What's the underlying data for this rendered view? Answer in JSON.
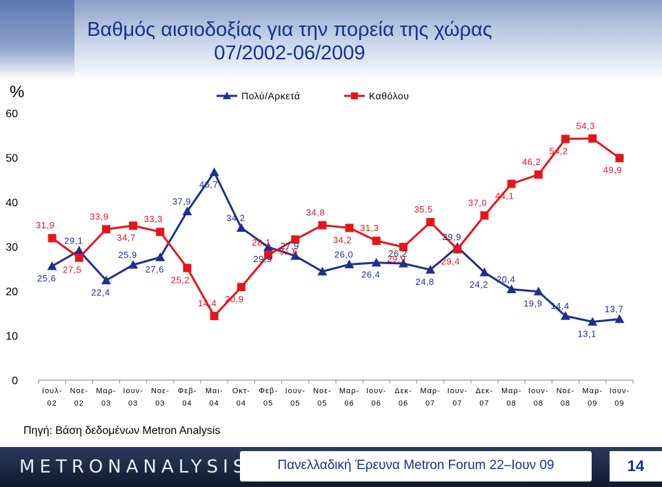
{
  "page": {
    "title_line1": "Βαθμός αισιοδοξίας για την πορεία της χώρας",
    "title_line2": "07/2002-06/2009",
    "source": "Πηγή: Βάση δεδομένων Metron Analysis",
    "footer_logo": "METRONANALYSIS",
    "footer_text": "Πανελλαδική Έρευνα Metron Forum 22–Ιουν 09",
    "page_number": "14"
  },
  "colors": {
    "series1": "#1f2f8f",
    "series2": "#e8141c",
    "title": "#17318f",
    "axis": "#808080"
  },
  "chart_data": {
    "type": "line",
    "ylabel": "%",
    "ylim": [
      0,
      60
    ],
    "yticks": [
      0,
      10,
      20,
      30,
      40,
      50,
      60
    ],
    "legend_position": "top",
    "categories": [
      [
        "Ιουλ-",
        "02"
      ],
      [
        "Νοε-",
        "02"
      ],
      [
        "Μαρ-",
        "03"
      ],
      [
        "Ιουν-",
        "03"
      ],
      [
        "Νοε-",
        "03"
      ],
      [
        "Φεβ-",
        "04"
      ],
      [
        "Μαι-",
        "04"
      ],
      [
        "Οκτ-",
        "04"
      ],
      [
        "Φεβ-",
        "05"
      ],
      [
        "Ιουν-",
        "05"
      ],
      [
        "Νοε-",
        "05"
      ],
      [
        "Μαρ-",
        "06"
      ],
      [
        "Ιουν-",
        "06"
      ],
      [
        "Δεκ-",
        "06"
      ],
      [
        "Μαρ-",
        "07"
      ],
      [
        "Ιουν-",
        "07"
      ],
      [
        "Δεκ-",
        "07"
      ],
      [
        "Μαρ-",
        "08"
      ],
      [
        "Ιουν-",
        "08"
      ],
      [
        "Νοε-",
        "08"
      ],
      [
        "Μαρ-",
        "09"
      ],
      [
        "Ιουν-",
        "09"
      ]
    ],
    "series": [
      {
        "name": "Πολύ/Αρκετά",
        "marker": "triangle",
        "values": [
          25.6,
          29.1,
          22.4,
          25.9,
          27.6,
          37.9,
          46.7,
          34.2,
          29.9,
          27.9,
          24.4,
          26.0,
          26.4,
          26.2,
          24.8,
          29.9,
          24.2,
          20.4,
          19.9,
          14.4,
          13.1,
          13.7
        ],
        "labels": [
          "25,6",
          "29,1",
          "22,4",
          "25,9",
          "27,6",
          "37,9",
          "46,7",
          "34,2",
          "29,9",
          "27,9",
          "",
          "26,0",
          "26,4",
          "26,2",
          "24,8",
          "29,9",
          "24,2",
          "20,4",
          "19,9",
          "14,4",
          "13,1",
          "13,7"
        ]
      },
      {
        "name": "Καθόλου",
        "marker": "square",
        "values": [
          31.9,
          27.5,
          33.9,
          34.7,
          33.3,
          25.2,
          14.4,
          20.9,
          28.1,
          31.6,
          34.8,
          34.2,
          31.3,
          29.9,
          35.5,
          29.4,
          37.0,
          44.1,
          46.2,
          54.2,
          54.3,
          49.9
        ],
        "labels": [
          "31,9",
          "27,5",
          "33,9",
          "34,7",
          "33,3",
          "25,2",
          "14,4",
          "20,9",
          "28,1",
          "31,6",
          "34,8",
          "34,2",
          "31,3",
          "29,9",
          "35,5",
          "29,4",
          "37,0",
          "44,1",
          "46,2",
          "54,2",
          "54,3",
          "49,9"
        ]
      }
    ]
  }
}
